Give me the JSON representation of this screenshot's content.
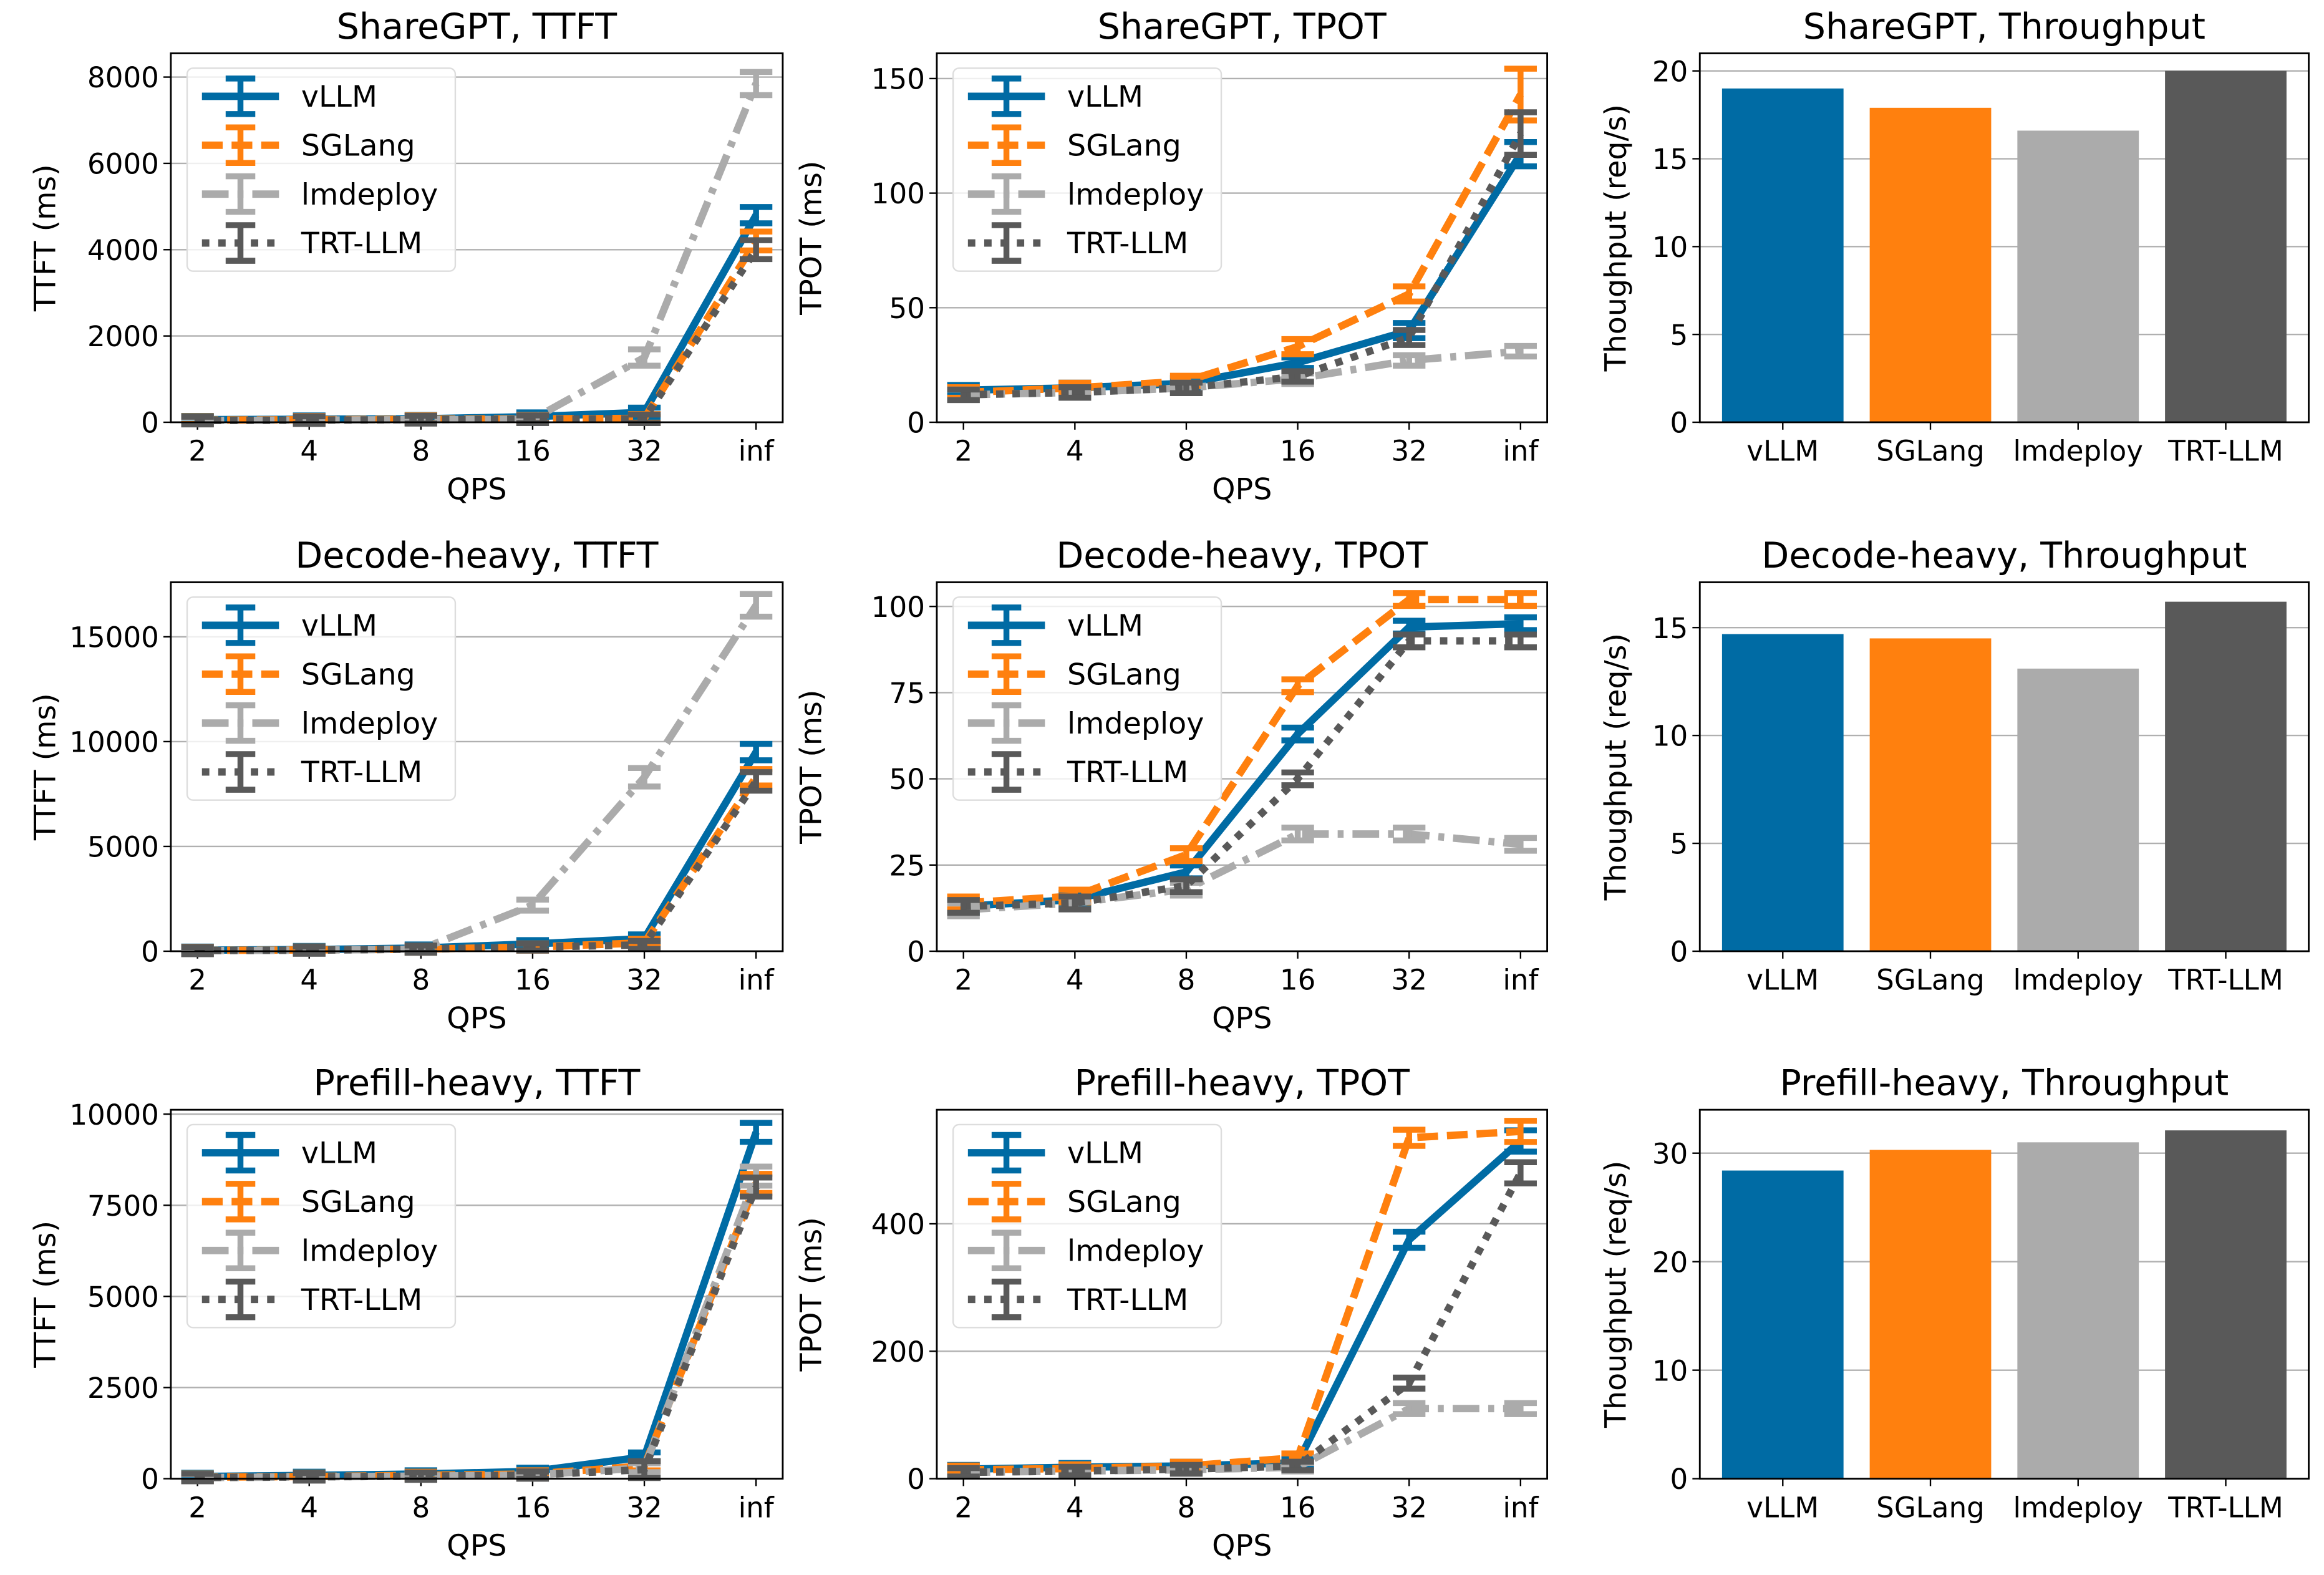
{
  "series_styles": {
    "vLLM": {
      "color": "#006BA4",
      "dash": "solid"
    },
    "SGLang": {
      "color": "#FF800E",
      "dash": "dashed"
    },
    "lmdeploy": {
      "color": "#ABABAB",
      "dash": "dashdot"
    },
    "TRT-LLM": {
      "color": "#595959",
      "dash": "dotted"
    }
  },
  "chart_data": [
    {
      "type": "line",
      "title": "ShareGPT, TTFT",
      "xlabel": "QPS",
      "ylabel": "TTFT (ms)",
      "categories": [
        "2",
        "4",
        "8",
        "16",
        "32",
        "inf"
      ],
      "ylim": [
        0,
        8550
      ],
      "yticks": [
        0,
        2000,
        4000,
        6000,
        8000
      ],
      "grid": "y",
      "legend": "upper-left",
      "series": [
        {
          "name": "vLLM",
          "values": [
            60,
            70,
            80,
            130,
            230,
            4800
          ],
          "yerr": [
            20,
            20,
            20,
            30,
            40,
            120
          ]
        },
        {
          "name": "SGLang",
          "values": [
            50,
            60,
            70,
            80,
            90,
            4200
          ],
          "yerr": [
            20,
            20,
            20,
            20,
            30,
            150
          ]
        },
        {
          "name": "lmdeploy",
          "values": [
            40,
            50,
            60,
            70,
            1500,
            7850
          ],
          "yerr": [
            20,
            20,
            20,
            20,
            120,
            200
          ]
        },
        {
          "name": "TRT-LLM",
          "values": [
            40,
            50,
            60,
            70,
            80,
            4000
          ],
          "yerr": [
            20,
            20,
            20,
            20,
            30,
            150
          ]
        }
      ]
    },
    {
      "type": "line",
      "title": "ShareGPT, TPOT",
      "xlabel": "QPS",
      "ylabel": "TPOT (ms)",
      "categories": [
        "2",
        "4",
        "8",
        "16",
        "32",
        "inf"
      ],
      "ylim": [
        0,
        161
      ],
      "yticks": [
        0,
        50,
        100,
        150
      ],
      "grid": "y",
      "legend": "upper-left",
      "series": [
        {
          "name": "vLLM",
          "values": [
            14,
            15,
            17,
            26,
            40,
            117
          ],
          "yerr": [
            1,
            1,
            1,
            1,
            2,
            4
          ]
        },
        {
          "name": "SGLang",
          "values": [
            13,
            15,
            18,
            33,
            56,
            143
          ],
          "yerr": [
            1,
            1,
            1,
            2,
            2,
            10
          ]
        },
        {
          "name": "lmdeploy",
          "values": [
            12,
            13,
            15,
            19,
            27,
            31
          ],
          "yerr": [
            1,
            1,
            1,
            1,
            1,
            1
          ]
        },
        {
          "name": "TRT-LLM",
          "values": [
            12,
            13,
            15,
            20,
            37,
            126
          ],
          "yerr": [
            1,
            1,
            1,
            1,
            2,
            8
          ]
        }
      ]
    },
    {
      "type": "bar",
      "title": "ShareGPT, Throughput",
      "ylabel": "Thoughput (req/s)",
      "categories": [
        "vLLM",
        "SGLang",
        "lmdeploy",
        "TRT-LLM"
      ],
      "values": [
        19.0,
        17.9,
        16.6,
        20.0
      ],
      "ylim": [
        0,
        21
      ],
      "yticks": [
        0,
        5,
        10,
        15,
        20
      ],
      "grid": "y"
    },
    {
      "type": "line",
      "title": "Decode-heavy, TTFT",
      "xlabel": "QPS",
      "ylabel": "TTFT (ms)",
      "categories": [
        "2",
        "4",
        "8",
        "16",
        "32",
        "inf"
      ],
      "ylim": [
        0,
        17600
      ],
      "yticks": [
        0,
        5000,
        10000,
        15000
      ],
      "grid": "y",
      "legend": "upper-left",
      "series": [
        {
          "name": "vLLM",
          "values": [
            50,
            80,
            150,
            350,
            600,
            9500
          ],
          "yerr": [
            30,
            30,
            30,
            40,
            60,
            250
          ]
        },
        {
          "name": "SGLang",
          "values": [
            40,
            60,
            100,
            200,
            400,
            8300
          ],
          "yerr": [
            30,
            30,
            30,
            30,
            50,
            250
          ]
        },
        {
          "name": "lmdeploy",
          "values": [
            30,
            50,
            100,
            2200,
            8300,
            16500
          ],
          "yerr": [
            30,
            30,
            30,
            120,
            300,
            400
          ]
        },
        {
          "name": "TRT-LLM",
          "values": [
            30,
            50,
            100,
            200,
            300,
            8100
          ],
          "yerr": [
            30,
            30,
            30,
            30,
            50,
            300
          ]
        }
      ]
    },
    {
      "type": "line",
      "title": "Decode-heavy, TPOT",
      "xlabel": "QPS",
      "ylabel": "TPOT (ms)",
      "categories": [
        "2",
        "4",
        "8",
        "16",
        "32",
        "inf"
      ],
      "ylim": [
        0,
        107
      ],
      "yticks": [
        0,
        25,
        50,
        75,
        100
      ],
      "grid": "y",
      "legend": "upper-left",
      "series": [
        {
          "name": "vLLM",
          "values": [
            13,
            15,
            23,
            63,
            94,
            95
          ],
          "yerr": [
            1,
            1,
            1,
            1,
            1,
            1
          ]
        },
        {
          "name": "SGLang",
          "values": [
            14,
            16,
            28,
            77,
            102,
            102
          ],
          "yerr": [
            1,
            1,
            1,
            1,
            1,
            1
          ]
        },
        {
          "name": "lmdeploy",
          "values": [
            12,
            14,
            18,
            34,
            34,
            31
          ],
          "yerr": [
            1,
            1,
            1,
            1,
            1,
            1
          ]
        },
        {
          "name": "TRT-LLM",
          "values": [
            13,
            14,
            19,
            50,
            90,
            90
          ],
          "yerr": [
            1,
            1,
            1,
            1,
            1,
            1
          ]
        }
      ]
    },
    {
      "type": "bar",
      "title": "Decode-heavy, Throughput",
      "ylabel": "Thoughput (req/s)",
      "categories": [
        "vLLM",
        "SGLang",
        "lmdeploy",
        "TRT-LLM"
      ],
      "values": [
        14.7,
        14.5,
        13.1,
        16.2
      ],
      "ylim": [
        0,
        17.1
      ],
      "yticks": [
        0,
        5,
        10,
        15
      ],
      "grid": "y"
    },
    {
      "type": "line",
      "title": "Prefill-heavy, TTFT",
      "xlabel": "QPS",
      "ylabel": "TTFT (ms)",
      "categories": [
        "2",
        "4",
        "8",
        "16",
        "32",
        "inf"
      ],
      "ylim": [
        0,
        10120
      ],
      "yticks": [
        0,
        2500,
        5000,
        7500,
        10000
      ],
      "grid": "y",
      "legend": "upper-left",
      "series": [
        {
          "name": "vLLM",
          "values": [
            60,
            90,
            130,
            200,
            600,
            9500
          ],
          "yerr": [
            20,
            20,
            20,
            20,
            40,
            180
          ]
        },
        {
          "name": "SGLang",
          "values": [
            40,
            60,
            90,
            130,
            350,
            8100
          ],
          "yerr": [
            20,
            20,
            20,
            20,
            40,
            180
          ]
        },
        {
          "name": "lmdeploy",
          "values": [
            30,
            50,
            70,
            100,
            300,
            8300
          ],
          "yerr": [
            20,
            20,
            20,
            20,
            40,
            180
          ]
        },
        {
          "name": "TRT-LLM",
          "values": [
            30,
            50,
            70,
            100,
            250,
            8000
          ],
          "yerr": [
            20,
            20,
            20,
            20,
            150,
            180
          ]
        }
      ]
    },
    {
      "type": "line",
      "title": "Prefill-heavy, TPOT",
      "xlabel": "QPS",
      "ylabel": "TPOT (ms)",
      "categories": [
        "2",
        "4",
        "8",
        "16",
        "32",
        "inf"
      ],
      "ylim": [
        0,
        579
      ],
      "yticks": [
        0,
        200,
        400
      ],
      "grid": "y",
      "legend": "upper-left",
      "series": [
        {
          "name": "vLLM",
          "values": [
            15,
            18,
            20,
            25,
            375,
            530
          ],
          "yerr": [
            2,
            2,
            2,
            2,
            8,
            12
          ]
        },
        {
          "name": "SGLang",
          "values": [
            14,
            16,
            20,
            33,
            535,
            545
          ],
          "yerr": [
            2,
            2,
            2,
            2,
            8,
            12
          ]
        },
        {
          "name": "lmdeploy",
          "values": [
            10,
            12,
            14,
            18,
            110,
            110
          ],
          "yerr": [
            2,
            2,
            2,
            2,
            4,
            4
          ]
        },
        {
          "name": "TRT-LLM",
          "values": [
            10,
            12,
            15,
            20,
            150,
            480
          ],
          "yerr": [
            2,
            2,
            2,
            2,
            4,
            12
          ]
        }
      ]
    },
    {
      "type": "bar",
      "title": "Prefill-heavy, Throughput",
      "ylabel": "Thoughput (req/s)",
      "categories": [
        "vLLM",
        "SGLang",
        "lmdeploy",
        "TRT-LLM"
      ],
      "values": [
        28.4,
        30.3,
        31.0,
        32.1
      ],
      "ylim": [
        0,
        34
      ],
      "yticks": [
        0,
        10,
        20,
        30
      ],
      "grid": "y"
    }
  ]
}
